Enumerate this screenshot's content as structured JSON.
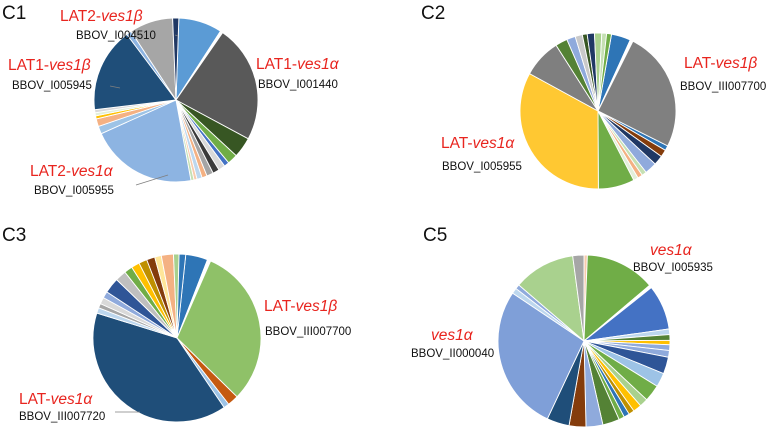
{
  "chart_data": [
    {
      "type": "pie",
      "panel": "C1",
      "annotations": [
        {
          "gene_prefix": "LAT2-",
          "gene_italic": "ves1β",
          "locus": "BBOV_I004510"
        },
        {
          "gene_prefix": "LAT1-",
          "gene_italic": "ves1α",
          "locus": "BBOV_I001440"
        },
        {
          "gene_prefix": "LAT1-",
          "gene_italic": "ves1β",
          "locus": "BBOV_I005945"
        },
        {
          "gene_prefix": "LAT2-",
          "gene_italic": "ves1α",
          "locus": "BBOV_I005955"
        }
      ],
      "slices": [
        {
          "value": 8.5,
          "color": "#5b9bd5"
        },
        {
          "value": 0.5,
          "color": "#ffffff"
        },
        {
          "value": 23,
          "color": "#595959"
        },
        {
          "value": 4,
          "color": "#375623"
        },
        {
          "value": 2,
          "color": "#70ad47"
        },
        {
          "value": 1,
          "color": "#4472c4"
        },
        {
          "value": 1.3,
          "color": "#d9d9d9"
        },
        {
          "value": 1.3,
          "color": "#3a3a3a"
        },
        {
          "value": 1.3,
          "color": "#a5a5a5"
        },
        {
          "value": 1,
          "color": "#f4b183"
        },
        {
          "value": 1,
          "color": "#bdd7ee"
        },
        {
          "value": 0.6,
          "color": "#f8cbad"
        },
        {
          "value": 0.6,
          "color": "#c5e0b3"
        },
        {
          "value": 21,
          "color": "#8db4e2"
        },
        {
          "value": 1.5,
          "color": "#9dc3e6"
        },
        {
          "value": 1.5,
          "color": "#f4b183"
        },
        {
          "value": 0.6,
          "color": "#ffc000"
        },
        {
          "value": 0.6,
          "color": "#e2efda"
        },
        {
          "value": 0.6,
          "color": "#d9d9d9"
        },
        {
          "value": 16.5,
          "color": "#1f4e79"
        },
        {
          "value": 1,
          "color": "#8db4e2"
        },
        {
          "value": 8.5,
          "color": "#a6a6a6"
        },
        {
          "value": 1.2,
          "color": "#203864"
        }
      ]
    },
    {
      "type": "pie",
      "panel": "C2",
      "annotations": [
        {
          "gene_prefix": "LAT-",
          "gene_italic": "ves1β",
          "locus": "BBOV_III007700"
        },
        {
          "gene_prefix": "LAT-",
          "gene_italic": "ves1α",
          "locus": "BBOV_I005955"
        }
      ],
      "slices": [
        {
          "value": 4,
          "color": "#2e75b6"
        },
        {
          "value": 0.6,
          "color": "#ffffff"
        },
        {
          "value": 25,
          "color": "#808080"
        },
        {
          "value": 1,
          "color": "#2e75b6"
        },
        {
          "value": 1.5,
          "color": "#843c0c"
        },
        {
          "value": 2,
          "color": "#203864"
        },
        {
          "value": 2.5,
          "color": "#8faadc"
        },
        {
          "value": 1,
          "color": "#c5e0b3"
        },
        {
          "value": 1,
          "color": "#f4b183"
        },
        {
          "value": 1,
          "color": "#e2efda"
        },
        {
          "value": 7.5,
          "color": "#70ad47"
        },
        {
          "value": 33,
          "color": "#ffc832"
        },
        {
          "value": 8,
          "color": "#7f7f7f"
        },
        {
          "value": 2.5,
          "color": "#548235"
        },
        {
          "value": 1.8,
          "color": "#8faadc"
        },
        {
          "value": 1.5,
          "color": "#c9c9c9"
        },
        {
          "value": 1,
          "color": "#375623"
        },
        {
          "value": 1.5,
          "color": "#1f3864"
        },
        {
          "value": 1.5,
          "color": "#a9d18e"
        },
        {
          "value": 1,
          "color": "#c5e0b3"
        },
        {
          "value": 1,
          "color": "#70ad47"
        }
      ]
    },
    {
      "type": "pie",
      "panel": "C3",
      "annotations": [
        {
          "gene_prefix": "LAT-",
          "gene_italic": "ves1β",
          "locus": "BBOV_III007700"
        },
        {
          "gene_prefix": "LAT-",
          "gene_italic": "ves1α",
          "locus": "BBOV_III007720"
        }
      ],
      "slices": [
        {
          "value": 4,
          "color": "#2e75b6"
        },
        {
          "value": 0.6,
          "color": "#ffffff"
        },
        {
          "value": 29,
          "color": "#8fc168"
        },
        {
          "value": 2,
          "color": "#c55a11"
        },
        {
          "value": 1,
          "color": "#9dc3e6"
        },
        {
          "value": 37,
          "color": "#1f4e79"
        },
        {
          "value": 1,
          "color": "#bdd7ee"
        },
        {
          "value": 0.8,
          "color": "#a6a6a6"
        },
        {
          "value": 1.2,
          "color": "#d9d9d9"
        },
        {
          "value": 1.2,
          "color": "#8faadc"
        },
        {
          "value": 2.8,
          "color": "#2f5597"
        },
        {
          "value": 2,
          "color": "#bfbfbf"
        },
        {
          "value": 1.5,
          "color": "#70ad47"
        },
        {
          "value": 1.5,
          "color": "#ffc000"
        },
        {
          "value": 1.5,
          "color": "#bf9000"
        },
        {
          "value": 1.5,
          "color": "#843c0c"
        },
        {
          "value": 1.2,
          "color": "#ffe699"
        },
        {
          "value": 2.2,
          "color": "#f4b183"
        },
        {
          "value": 1,
          "color": "#a9d18e"
        },
        {
          "value": 1.2,
          "color": "#2e75b6"
        }
      ]
    },
    {
      "type": "pie",
      "panel": "C5",
      "annotations": [
        {
          "gene_prefix": "",
          "gene_italic": "ves1α",
          "locus": "BBOV_I005935"
        },
        {
          "gene_prefix": "",
          "gene_italic": "ves1α",
          "locus": "BBOV_II000040"
        }
      ],
      "slices": [
        {
          "value": 0.6,
          "color": "#f8cbad"
        },
        {
          "value": 12.5,
          "color": "#70ad47"
        },
        {
          "value": 0.5,
          "color": "#ffffff"
        },
        {
          "value": 8,
          "color": "#4472c4"
        },
        {
          "value": 1,
          "color": "#bdd7ee"
        },
        {
          "value": 1,
          "color": "#548235"
        },
        {
          "value": 0.8,
          "color": "#ffc000"
        },
        {
          "value": 1,
          "color": "#8faadc"
        },
        {
          "value": 1.2,
          "color": "#8faadc"
        },
        {
          "value": 3,
          "color": "#2f5597"
        },
        {
          "value": 2.5,
          "color": "#9dc3e6"
        },
        {
          "value": 3,
          "color": "#70ad47"
        },
        {
          "value": 1.5,
          "color": "#a9d18e"
        },
        {
          "value": 1.5,
          "color": "#ffc000"
        },
        {
          "value": 1,
          "color": "#bf9000"
        },
        {
          "value": 1,
          "color": "#2e75b6"
        },
        {
          "value": 1,
          "color": "#70ad47"
        },
        {
          "value": 3,
          "color": "#548235"
        },
        {
          "value": 3,
          "color": "#8faadc"
        },
        {
          "value": 3,
          "color": "#843c0c"
        },
        {
          "value": 4,
          "color": "#1f4e79"
        },
        {
          "value": 26,
          "color": "#7f9fd8"
        },
        {
          "value": 1,
          "color": "#bdd7ee"
        },
        {
          "value": 0.8,
          "color": "#8faadc"
        },
        {
          "value": 11,
          "color": "#a9d18e"
        },
        {
          "value": 2,
          "color": "#a6a6a6"
        }
      ]
    }
  ]
}
